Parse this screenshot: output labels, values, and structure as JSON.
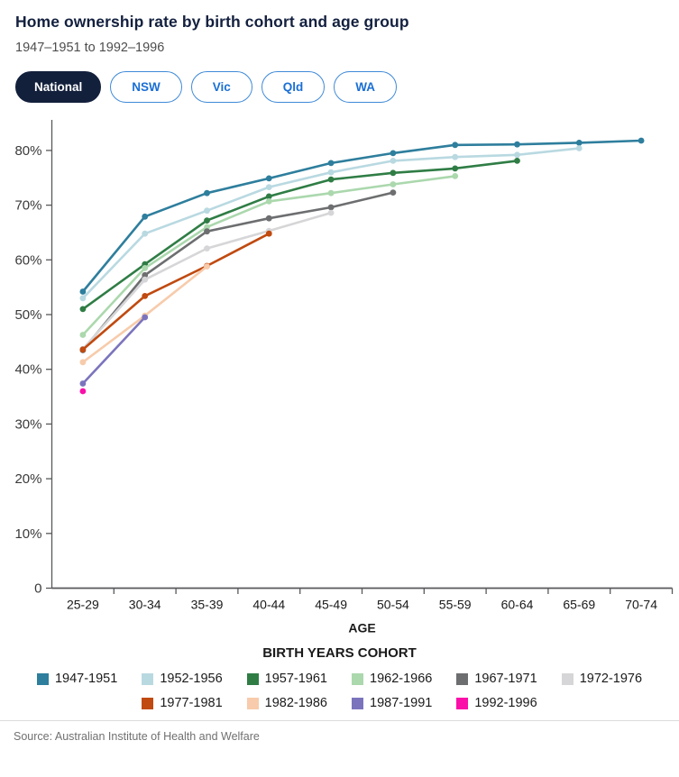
{
  "header": {
    "title": "Home ownership rate by birth cohort and age group",
    "subtitle": "1947–1951 to 1992–1996"
  },
  "tabs": [
    {
      "label": "National",
      "active": true
    },
    {
      "label": "NSW",
      "active": false
    },
    {
      "label": "Vic",
      "active": false
    },
    {
      "label": "Qld",
      "active": false
    },
    {
      "label": "WA",
      "active": false
    }
  ],
  "chart_data": {
    "type": "line",
    "title": "Home ownership rate by birth cohort and age group",
    "xlabel": "AGE",
    "ylabel": "",
    "legend_title": "BIRTH YEARS COHORT",
    "legend_position": "bottom",
    "legend_row_split": 6,
    "grid": false,
    "ylim": [
      0,
      86
    ],
    "yticks": [
      0,
      10,
      20,
      30,
      40,
      50,
      60,
      70,
      80
    ],
    "ytick_suffix": "%",
    "x_categories": [
      "25-29",
      "30-34",
      "35-39",
      "40-44",
      "45-49",
      "50-54",
      "55-59",
      "60-64",
      "65-69",
      "70-74"
    ],
    "series": [
      {
        "name": "1947-1951",
        "color": "#2e7e9d",
        "values": [
          54.2,
          67.9,
          72.2,
          74.9,
          77.7,
          79.5,
          81.0,
          81.1,
          81.4,
          81.8
        ]
      },
      {
        "name": "1952-1956",
        "color": "#b9d9e1",
        "values": [
          53.0,
          64.8,
          69.0,
          73.3,
          76.0,
          78.1,
          78.8,
          79.2,
          80.4
        ]
      },
      {
        "name": "1957-1961",
        "color": "#2f7d45",
        "values": [
          51.0,
          59.2,
          67.2,
          71.6,
          74.7,
          75.9,
          76.7,
          78.1
        ]
      },
      {
        "name": "1962-1966",
        "color": "#abd8ad",
        "values": [
          46.3,
          58.5,
          66.0,
          70.7,
          72.2,
          73.8,
          75.3
        ]
      },
      {
        "name": "1967-1971",
        "color": "#6d6e70",
        "values": [
          43.5,
          57.2,
          65.2,
          67.6,
          69.6,
          72.3
        ]
      },
      {
        "name": "1972-1976",
        "color": "#d6d6d8",
        "values": [
          43.7,
          56.4,
          62.1,
          65.3,
          68.6
        ]
      },
      {
        "name": "1977-1981",
        "color": "#c04a10",
        "values": [
          43.6,
          53.4,
          58.9,
          64.8
        ]
      },
      {
        "name": "1982-1986",
        "color": "#f7cbab",
        "values": [
          41.3,
          49.8,
          58.8
        ]
      },
      {
        "name": "1987-1991",
        "color": "#7b74bd",
        "values": [
          37.4,
          49.5
        ]
      },
      {
        "name": "1992-1996",
        "color": "#fb0fa9",
        "values": [
          36.0
        ]
      }
    ]
  },
  "footer": {
    "source": "Source: Australian Institute of Health and Welfare"
  },
  "colors": {
    "title_navy": "#13203f",
    "active_tab_bg": "#13203c",
    "tab_blue": "#1a6fd4",
    "tab_border": "#3f8ad8",
    "axis": "#58595b",
    "tick_text": "#3a3a3a"
  }
}
